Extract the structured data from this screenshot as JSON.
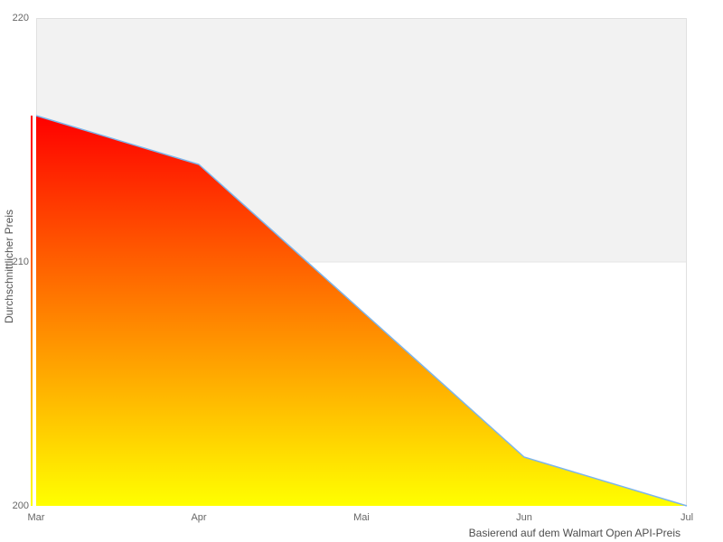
{
  "chart_data": {
    "type": "area",
    "categories": [
      "Mar",
      "Apr",
      "Mai",
      "Jun",
      "Jul"
    ],
    "values": [
      216,
      214,
      208,
      202,
      200
    ],
    "title": "",
    "xlabel": "Basierend auf dem Walmart Open API-Preis",
    "ylabel": "Durchschnittlicher Preis",
    "ylim": [
      200,
      220
    ],
    "yticks": [
      200,
      210,
      220
    ],
    "grid": false,
    "legend": false,
    "plot_bands": [
      {
        "from": 210,
        "to": 220,
        "color": "#f2f2f2"
      }
    ],
    "colors": {
      "line": "#7cb5ec",
      "fill_top": "#ff0000",
      "fill_bottom": "#ffff00",
      "plot_border": "#e0e0e0",
      "band_edge": "#e6e6e6",
      "tick_label": "#666666",
      "y_title": "#555555",
      "x_title": "#4d4d4d"
    }
  }
}
